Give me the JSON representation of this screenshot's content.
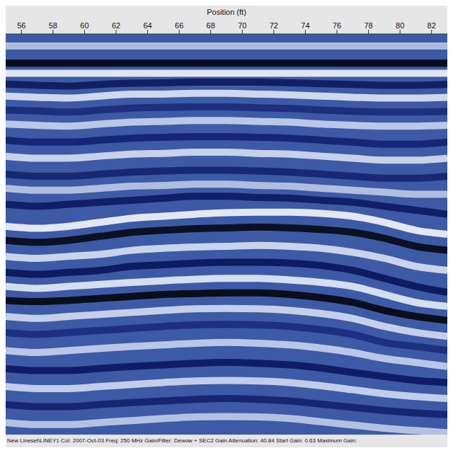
{
  "chart_data": {
    "type": "line",
    "x_label": "Position (ft)",
    "annotation": "New Lineset\\LINEY1  Col: 2007-Oct-03  Freq: 250 MHz  Gain/Filter: Dewow + SEC2 Gain  Attenuation: 40.84  Start Gain: 0.63  Maximum Gain:",
    "color": "#3c5aa6",
    "grid": false,
    "tick_labels": "x",
    "xlim": [
      55,
      83
    ],
    "xticks": [
      56,
      58,
      60,
      62,
      64,
      66,
      68,
      70,
      72,
      74,
      76,
      78,
      80,
      82
    ],
    "ylim": [
      0,
      100
    ],
    "x": [
      55,
      57,
      59,
      61,
      63,
      65,
      67,
      69,
      71,
      73,
      75,
      77,
      79,
      81,
      83
    ],
    "series": [
      {
        "color": "#b8c4e4",
        "values": [
          3,
          3,
          3,
          3,
          3,
          3,
          3,
          3,
          3,
          3,
          3,
          3,
          3,
          3,
          3
        ]
      },
      {
        "color": "#05050f",
        "values": [
          7.3,
          7.3,
          7.3,
          7.3,
          7.3,
          7.3,
          7.3,
          7.3,
          7.3,
          7.3,
          7.3,
          7.3,
          7.3,
          7.3,
          7.3
        ]
      },
      {
        "color": "#f2f4fa",
        "values": [
          9.8,
          9.8,
          9.8,
          9.8,
          9.8,
          9.8,
          9.8,
          9.8,
          9.8,
          9.8,
          9.8,
          9.8,
          9.8,
          9.8,
          9.8
        ]
      },
      {
        "color": "#0d1a5c",
        "values": [
          12.5,
          12.8,
          13,
          12.6,
          12.3,
          12.2,
          12,
          12,
          12,
          12.2,
          12.4,
          12.6,
          12.8,
          12.8,
          12.6
        ]
      },
      {
        "color": "#dfe6f4",
        "values": [
          15.5,
          15.8,
          16,
          15.5,
          15,
          15,
          14.8,
          14.8,
          15,
          15.2,
          15.5,
          15.8,
          16,
          16,
          15.8
        ]
      },
      {
        "color": "#1a2a78",
        "values": [
          19,
          19.2,
          19.5,
          19,
          18.5,
          18.3,
          18.2,
          18.2,
          18.4,
          18.6,
          19,
          19.3,
          19.5,
          19.5,
          19.3
        ]
      },
      {
        "color": "#c9d4ec",
        "values": [
          22.5,
          22.8,
          23,
          22.5,
          22,
          21.8,
          21.6,
          21.6,
          21.8,
          22,
          22.5,
          22.8,
          23,
          23,
          22.8
        ]
      },
      {
        "color": "#102070",
        "values": [
          26.5,
          27,
          27,
          26.5,
          26,
          25.8,
          25.6,
          25.6,
          25.8,
          26,
          26.5,
          27,
          27.5,
          27.5,
          27
        ]
      },
      {
        "color": "#d6def0",
        "values": [
          30.5,
          31,
          31,
          30.5,
          30,
          29.8,
          29.5,
          29.5,
          29.8,
          30,
          30.5,
          31,
          31.5,
          31.5,
          31
        ]
      },
      {
        "color": "#14226e",
        "values": [
          35,
          35.5,
          35.5,
          35,
          34.5,
          34.2,
          34,
          34,
          34.2,
          34.5,
          35,
          35.5,
          36,
          36,
          35.5
        ]
      },
      {
        "color": "#bcc8e6",
        "values": [
          38.5,
          39,
          39,
          38.5,
          38,
          37.8,
          37.5,
          37.5,
          37.8,
          38,
          38.5,
          39,
          39.5,
          40,
          40
        ]
      },
      {
        "color": "#0c1860",
        "values": [
          42.5,
          43,
          42.5,
          42,
          41.5,
          41,
          40.5,
          40.5,
          40.8,
          41,
          41.5,
          42,
          43,
          44,
          45
        ]
      },
      {
        "color": "#f4f6fb",
        "values": [
          48,
          48.5,
          48,
          47,
          46,
          45.5,
          45,
          44.6,
          44.5,
          44.5,
          44.8,
          45.5,
          47,
          49,
          50
        ]
      },
      {
        "color": "#050814",
        "values": [
          51.5,
          52,
          51.5,
          50.5,
          49.5,
          49,
          48.6,
          48.4,
          48.2,
          48.4,
          48.8,
          49.5,
          51,
          53,
          54
        ]
      },
      {
        "color": "#d8e0f2",
        "values": [
          55.5,
          56,
          55.5,
          55,
          54,
          53.5,
          53.2,
          53,
          52.8,
          53,
          53.5,
          54.5,
          56,
          58,
          59
        ]
      },
      {
        "color": "#0a1458",
        "values": [
          59.5,
          60,
          59.5,
          59,
          58,
          57.6,
          57.2,
          57,
          57,
          57.2,
          57.8,
          59,
          61,
          63,
          64.5
        ]
      },
      {
        "color": "#e6ecf6",
        "values": [
          63,
          63.5,
          63,
          62.5,
          62,
          61.6,
          61.2,
          61,
          61,
          61.4,
          62,
          63,
          65,
          67,
          68
        ]
      },
      {
        "color": "#03050c",
        "values": [
          66.5,
          66.8,
          66.5,
          66,
          65.5,
          65,
          64.8,
          64.6,
          64.6,
          65,
          65.8,
          67,
          69,
          70.5,
          71.5
        ]
      },
      {
        "color": "#d4dcf0",
        "values": [
          70.5,
          71,
          70.5,
          70,
          69.5,
          69,
          68.6,
          68.5,
          68.6,
          69,
          69.8,
          71,
          73,
          74.5,
          75.5
        ]
      },
      {
        "color": "#1a2a7c",
        "values": [
          74.5,
          75,
          74.5,
          74,
          73.5,
          73,
          72.6,
          72.5,
          72.6,
          73,
          73.8,
          75,
          77,
          78,
          79
        ]
      },
      {
        "color": "#c8d2ec",
        "values": [
          79,
          79.5,
          79,
          78.5,
          78,
          77.6,
          77.2,
          77,
          77.2,
          77.6,
          78.4,
          79.5,
          81,
          82,
          83
        ]
      },
      {
        "color": "#0a1660",
        "values": [
          83.5,
          84,
          84,
          83.5,
          83,
          82.6,
          82.2,
          82,
          82.2,
          82.6,
          83.4,
          84.5,
          85.5,
          86.5,
          87
        ]
      },
      {
        "color": "#d0daf0",
        "values": [
          88,
          88.5,
          88.5,
          88,
          87.5,
          87,
          86.6,
          86.5,
          86.6,
          87,
          87.8,
          88.8,
          89.8,
          90.5,
          91
        ]
      },
      {
        "color": "#13206a",
        "values": [
          92.5,
          93,
          93,
          92.5,
          92,
          91.6,
          91.2,
          91,
          91.2,
          91.6,
          92.4,
          93.2,
          94,
          94.6,
          95
        ]
      },
      {
        "color": "#c0cce8",
        "values": [
          97,
          97.5,
          97.5,
          97,
          96.5,
          96,
          95.6,
          95.5,
          95.6,
          96,
          96.8,
          97.6,
          98.4,
          99,
          99.5
        ]
      }
    ]
  }
}
